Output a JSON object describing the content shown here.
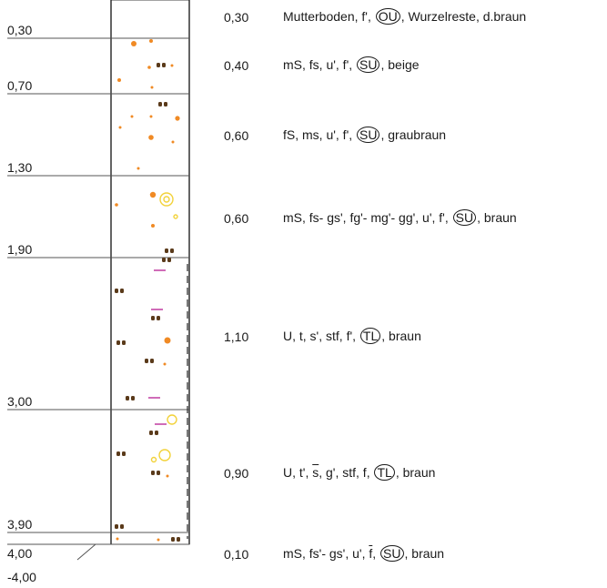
{
  "depths": [
    "0,30",
    "0,70",
    "1,30",
    "1,90",
    "3,00",
    "3,90",
    "4,00",
    "-4,00"
  ],
  "layers": [
    {
      "thickness": "0,30",
      "parts": [
        {
          "t": "Mutterboden, f', "
        },
        {
          "t": "OU",
          "c": true
        },
        {
          "t": ", Wurzelreste, d.braun"
        }
      ]
    },
    {
      "thickness": "0,40",
      "parts": [
        {
          "t": "mS, fs, u', f', "
        },
        {
          "t": "SU",
          "c": true
        },
        {
          "t": ", beige"
        }
      ]
    },
    {
      "thickness": "0,60",
      "parts": [
        {
          "t": "fS, ms, u', f', "
        },
        {
          "t": "SU",
          "c": true
        },
        {
          "t": ", graubraun"
        }
      ]
    },
    {
      "thickness": "0,60",
      "parts": [
        {
          "t": "mS, fs- gs', fg'- mg'- gg', u', f', "
        },
        {
          "t": "SU",
          "c": true
        },
        {
          "t": ", braun"
        }
      ]
    },
    {
      "thickness": "1,10",
      "parts": [
        {
          "t": "U, t, s', stf, f', "
        },
        {
          "t": "TL",
          "c": true
        },
        {
          "t": ", braun"
        }
      ]
    },
    {
      "thickness": "0,90",
      "parts": [
        {
          "t": "U, t', "
        },
        {
          "t": "s",
          "o": true
        },
        {
          "t": ", g', stf, f, "
        },
        {
          "t": "TL",
          "c": true
        },
        {
          "t": ", braun"
        }
      ]
    },
    {
      "thickness": "0,10",
      "parts": [
        {
          "t": "mS, fs'- gs', u', "
        },
        {
          "t": "f",
          "o": true
        },
        {
          "t": ", "
        },
        {
          "t": "SU",
          "c": true
        },
        {
          "t": ", braun"
        }
      ]
    }
  ],
  "colors": {
    "line": "#555555",
    "orange": "#f08a24",
    "brown": "#5a3a1a",
    "yellow": "#f2d23a",
    "magenta": "#c03aa0"
  }
}
